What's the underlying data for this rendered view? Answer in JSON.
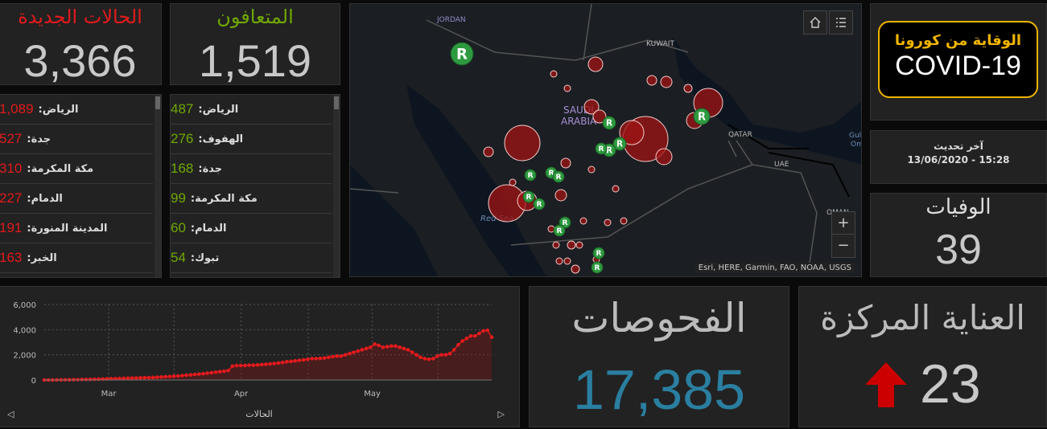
{
  "new_cases": {
    "title": "الحالات الجديدة",
    "value": "3,366",
    "color": "#e31a1c"
  },
  "recovered": {
    "title": "المتعافون",
    "value": "1,519",
    "color": "#70a800"
  },
  "cases_by_city": [
    {
      "name": "الرياض:",
      "value": "1,089"
    },
    {
      "name": "جدة:",
      "value": "527"
    },
    {
      "name": "مكة المكرمة:",
      "value": "310"
    },
    {
      "name": "الدمام:",
      "value": "227"
    },
    {
      "name": "المدينة المنورة:",
      "value": "191"
    },
    {
      "name": "الخبر:",
      "value": "163"
    }
  ],
  "recovered_by_city": [
    {
      "name": "الرياض:",
      "value": "487"
    },
    {
      "name": "الهفوف:",
      "value": "276"
    },
    {
      "name": "جدة:",
      "value": "168"
    },
    {
      "name": "مكة المكرمة:",
      "value": "99"
    },
    {
      "name": "الدمام:",
      "value": "60"
    },
    {
      "name": "تبوك:",
      "value": "54"
    }
  ],
  "map": {
    "attribution": "Esri, HERE, Garmin, FAO, NOAA, USGS",
    "labels": {
      "jordan": "JORDAN",
      "kuwait": "KUWAIT",
      "saudi1": "SAUDI",
      "saudi2": "ARABIA",
      "qatar": "QATAR",
      "uae": "UAE",
      "oman": "OMAN",
      "redsea": "Red Sea",
      "gulf1": "Gul",
      "gulf2": "Om"
    },
    "home_icon": "home-icon",
    "legend_icon": "legend-list-icon",
    "zoom_in": "+",
    "zoom_out": "−"
  },
  "banner": {
    "line1": "الوقاية من كورونا",
    "line2": "COVID-19",
    "border_color": "#f0b400"
  },
  "last_update": {
    "label": "آخر تحديث",
    "value": "13/06/2020 - 15:28"
  },
  "deaths": {
    "title": "الوفيات",
    "value": "39"
  },
  "tests": {
    "title": "الفحوصات",
    "value": "17,385",
    "color": "#2a7fa0"
  },
  "icu": {
    "title": "العناية المركزة",
    "value": "23",
    "arrow_color": "#cc0000"
  },
  "chart_data": {
    "type": "line",
    "title": "",
    "xlabel": "الحالات",
    "ylabel": "",
    "ylim": [
      0,
      6000
    ],
    "yticks": [
      "0",
      "2,000",
      "4,000",
      "6,000"
    ],
    "xticks": [
      "Mar",
      "Apr",
      "May"
    ],
    "series": [
      {
        "values": [
          0,
          0,
          0,
          5,
          10,
          15,
          20,
          25,
          30,
          40,
          45,
          50,
          60,
          70,
          80,
          90,
          100,
          110,
          120,
          130,
          140,
          150,
          160,
          170,
          180,
          190,
          200,
          220,
          240,
          260,
          280,
          300,
          320,
          350,
          380,
          410,
          440,
          470,
          500,
          540,
          580,
          620,
          660,
          700,
          750,
          1100,
          1150,
          1150,
          1150,
          1180,
          1180,
          1200,
          1220,
          1250,
          1280,
          1320,
          1350,
          1400,
          1450,
          1480,
          1520,
          1560,
          1600,
          1650,
          1700,
          1700,
          1720,
          1750,
          1800,
          1850,
          1900,
          1900,
          2000,
          2100,
          2200,
          2300,
          2400,
          2500,
          2600,
          2850,
          2750,
          2600,
          2650,
          2700,
          2700,
          2600,
          2500,
          2400,
          2200,
          2000,
          1800,
          1700,
          1650,
          1700,
          1900,
          2000,
          2000,
          2100,
          2400,
          2800,
          3100,
          3300,
          3500,
          3500,
          3700,
          3900,
          3950,
          3400
        ]
      }
    ],
    "color": "#e31a1c",
    "grid": true
  }
}
